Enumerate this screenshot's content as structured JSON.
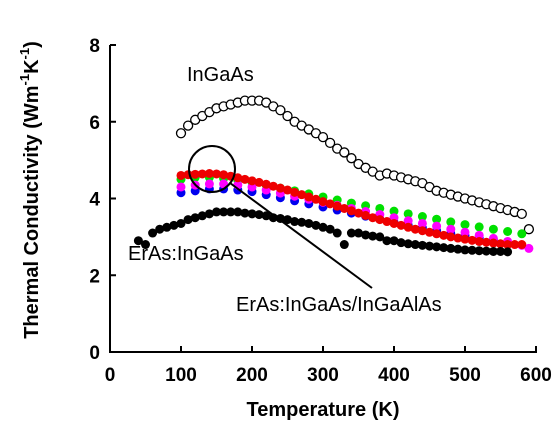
{
  "chart_data": {
    "type": "scatter",
    "xlabel": "Temperature (K)",
    "ylabel_parts": [
      "Thermal Conductivity (Wm",
      "-1",
      "K",
      "-1",
      ")"
    ],
    "xlim": [
      0,
      600
    ],
    "ylim": [
      0,
      8
    ],
    "x_ticks": [
      0,
      100,
      200,
      300,
      400,
      500,
      600
    ],
    "y_ticks": [
      0,
      2,
      4,
      6,
      8
    ],
    "grid": false,
    "annotations": [
      {
        "id": "ingaas",
        "text": "InGaAs"
      },
      {
        "id": "eras-ingaas",
        "text": "ErAs:InGaAs"
      },
      {
        "id": "eras-ingaas-ingaalas",
        "text": "ErAs:InGaAs/InGaAlAs"
      }
    ],
    "series": [
      {
        "color": "#000000",
        "filled": false,
        "points": [
          [
            100,
            5.7
          ],
          [
            110,
            5.9
          ],
          [
            120,
            6.05
          ],
          [
            130,
            6.15
          ],
          [
            140,
            6.25
          ],
          [
            150,
            6.35
          ],
          [
            160,
            6.4
          ],
          [
            170,
            6.45
          ],
          [
            180,
            6.5
          ],
          [
            190,
            6.55
          ],
          [
            200,
            6.55
          ],
          [
            210,
            6.55
          ],
          [
            220,
            6.5
          ],
          [
            230,
            6.4
          ],
          [
            240,
            6.3
          ],
          [
            250,
            6.15
          ],
          [
            260,
            6.0
          ],
          [
            270,
            5.9
          ],
          [
            280,
            5.8
          ],
          [
            290,
            5.7
          ],
          [
            300,
            5.6
          ],
          [
            310,
            5.45
          ],
          [
            320,
            5.3
          ],
          [
            330,
            5.2
          ],
          [
            340,
            5.05
          ],
          [
            350,
            4.9
          ],
          [
            360,
            4.8
          ],
          [
            370,
            4.7
          ],
          [
            380,
            4.6
          ],
          [
            390,
            4.65
          ],
          [
            400,
            4.6
          ],
          [
            410,
            4.55
          ],
          [
            420,
            4.5
          ],
          [
            430,
            4.45
          ],
          [
            440,
            4.4
          ],
          [
            450,
            4.3
          ],
          [
            460,
            4.2
          ],
          [
            470,
            4.15
          ],
          [
            480,
            4.1
          ],
          [
            490,
            4.05
          ],
          [
            500,
            4.0
          ],
          [
            510,
            3.95
          ],
          [
            520,
            3.9
          ],
          [
            530,
            3.85
          ],
          [
            540,
            3.8
          ],
          [
            550,
            3.75
          ],
          [
            560,
            3.7
          ],
          [
            570,
            3.65
          ],
          [
            580,
            3.6
          ],
          [
            590,
            3.2
          ]
        ]
      },
      {
        "color": "#0000ee",
        "filled": true,
        "points": [
          [
            100,
            4.15
          ],
          [
            120,
            4.2
          ],
          [
            140,
            4.25
          ],
          [
            160,
            4.25
          ],
          [
            180,
            4.22
          ],
          [
            200,
            4.18
          ],
          [
            220,
            4.1
          ],
          [
            240,
            4.02
          ],
          [
            260,
            3.94
          ],
          [
            280,
            3.86
          ],
          [
            300,
            3.78
          ],
          [
            320,
            3.7
          ],
          [
            340,
            3.62
          ],
          [
            360,
            3.54
          ],
          [
            380,
            3.46
          ],
          [
            400,
            3.38
          ],
          [
            420,
            3.3
          ],
          [
            440,
            3.23
          ],
          [
            460,
            3.16
          ],
          [
            480,
            3.09
          ],
          [
            500,
            3.03
          ],
          [
            520,
            2.97
          ],
          [
            540,
            2.92
          ]
        ]
      },
      {
        "color": "#00e000",
        "filled": true,
        "points": [
          [
            100,
            4.5
          ],
          [
            120,
            4.55
          ],
          [
            140,
            4.55
          ],
          [
            160,
            4.52
          ],
          [
            180,
            4.48
          ],
          [
            200,
            4.42
          ],
          [
            220,
            4.35
          ],
          [
            240,
            4.27
          ],
          [
            260,
            4.2
          ],
          [
            280,
            4.12
          ],
          [
            300,
            4.04
          ],
          [
            320,
            3.96
          ],
          [
            340,
            3.88
          ],
          [
            360,
            3.81
          ],
          [
            380,
            3.74
          ],
          [
            400,
            3.67
          ],
          [
            420,
            3.6
          ],
          [
            440,
            3.53
          ],
          [
            460,
            3.46
          ],
          [
            480,
            3.39
          ],
          [
            500,
            3.32
          ],
          [
            520,
            3.26
          ],
          [
            540,
            3.2
          ],
          [
            560,
            3.14
          ],
          [
            580,
            3.08
          ]
        ]
      },
      {
        "color": "#ff00ff",
        "filled": true,
        "points": [
          [
            100,
            4.3
          ],
          [
            120,
            4.35
          ],
          [
            140,
            4.38
          ],
          [
            160,
            4.38
          ],
          [
            180,
            4.35
          ],
          [
            200,
            4.3
          ],
          [
            220,
            4.22
          ],
          [
            240,
            4.14
          ],
          [
            260,
            4.06
          ],
          [
            280,
            3.98
          ],
          [
            300,
            3.9
          ],
          [
            320,
            3.82
          ],
          [
            340,
            3.74
          ],
          [
            360,
            3.66
          ],
          [
            380,
            3.58
          ],
          [
            400,
            3.5
          ],
          [
            420,
            3.42
          ],
          [
            440,
            3.35
          ],
          [
            460,
            3.28
          ],
          [
            480,
            3.2
          ],
          [
            500,
            3.12
          ],
          [
            520,
            3.04
          ],
          [
            540,
            2.96
          ],
          [
            560,
            2.88
          ],
          [
            580,
            2.78
          ],
          [
            590,
            2.7
          ]
        ]
      },
      {
        "color": "#ee0000",
        "filled": true,
        "points": [
          [
            100,
            4.6
          ],
          [
            110,
            4.62
          ],
          [
            120,
            4.63
          ],
          [
            130,
            4.64
          ],
          [
            140,
            4.65
          ],
          [
            150,
            4.64
          ],
          [
            160,
            4.62
          ],
          [
            170,
            4.58
          ],
          [
            180,
            4.54
          ],
          [
            190,
            4.5
          ],
          [
            200,
            4.46
          ],
          [
            210,
            4.42
          ],
          [
            220,
            4.37
          ],
          [
            230,
            4.32
          ],
          [
            240,
            4.27
          ],
          [
            250,
            4.22
          ],
          [
            260,
            4.16
          ],
          [
            270,
            4.1
          ],
          [
            280,
            4.04
          ],
          [
            290,
            3.98
          ],
          [
            300,
            3.92
          ],
          [
            310,
            3.86
          ],
          [
            320,
            3.8
          ],
          [
            330,
            3.74
          ],
          [
            340,
            3.68
          ],
          [
            350,
            3.62
          ],
          [
            360,
            3.56
          ],
          [
            370,
            3.5
          ],
          [
            380,
            3.45
          ],
          [
            390,
            3.4
          ],
          [
            400,
            3.35
          ],
          [
            410,
            3.3
          ],
          [
            420,
            3.25
          ],
          [
            430,
            3.2
          ],
          [
            440,
            3.16
          ],
          [
            450,
            3.12
          ],
          [
            460,
            3.08
          ],
          [
            470,
            3.04
          ],
          [
            480,
            3.0
          ],
          [
            490,
            2.97
          ],
          [
            500,
            2.94
          ],
          [
            510,
            2.91
          ],
          [
            520,
            2.88
          ],
          [
            530,
            2.86
          ],
          [
            540,
            2.84
          ],
          [
            550,
            2.82
          ],
          [
            560,
            2.8
          ],
          [
            570,
            2.8
          ],
          [
            580,
            2.8
          ]
        ]
      },
      {
        "color": "#000000",
        "filled": true,
        "points": [
          [
            40,
            2.9
          ],
          [
            50,
            2.8
          ],
          [
            60,
            3.1
          ],
          [
            70,
            3.2
          ],
          [
            80,
            3.25
          ],
          [
            90,
            3.3
          ],
          [
            100,
            3.35
          ],
          [
            110,
            3.45
          ],
          [
            120,
            3.5
          ],
          [
            130,
            3.55
          ],
          [
            140,
            3.6
          ],
          [
            150,
            3.65
          ],
          [
            160,
            3.65
          ],
          [
            170,
            3.65
          ],
          [
            180,
            3.65
          ],
          [
            190,
            3.62
          ],
          [
            200,
            3.6
          ],
          [
            210,
            3.58
          ],
          [
            220,
            3.55
          ],
          [
            230,
            3.5
          ],
          [
            240,
            3.48
          ],
          [
            250,
            3.45
          ],
          [
            260,
            3.4
          ],
          [
            270,
            3.38
          ],
          [
            280,
            3.35
          ],
          [
            290,
            3.3
          ],
          [
            300,
            3.25
          ],
          [
            310,
            3.2
          ],
          [
            320,
            3.1
          ],
          [
            330,
            2.8
          ],
          [
            340,
            3.1
          ],
          [
            350,
            3.1
          ],
          [
            360,
            3.05
          ],
          [
            370,
            3.02
          ],
          [
            380,
            3.0
          ],
          [
            390,
            2.9
          ],
          [
            400,
            2.9
          ],
          [
            410,
            2.85
          ],
          [
            420,
            2.82
          ],
          [
            430,
            2.8
          ],
          [
            440,
            2.78
          ],
          [
            450,
            2.76
          ],
          [
            460,
            2.74
          ],
          [
            470,
            2.72
          ],
          [
            480,
            2.7
          ],
          [
            490,
            2.68
          ],
          [
            500,
            2.66
          ],
          [
            510,
            2.65
          ],
          [
            520,
            2.64
          ],
          [
            530,
            2.63
          ],
          [
            540,
            2.62
          ],
          [
            550,
            2.62
          ],
          [
            560,
            2.61
          ]
        ]
      }
    ]
  }
}
